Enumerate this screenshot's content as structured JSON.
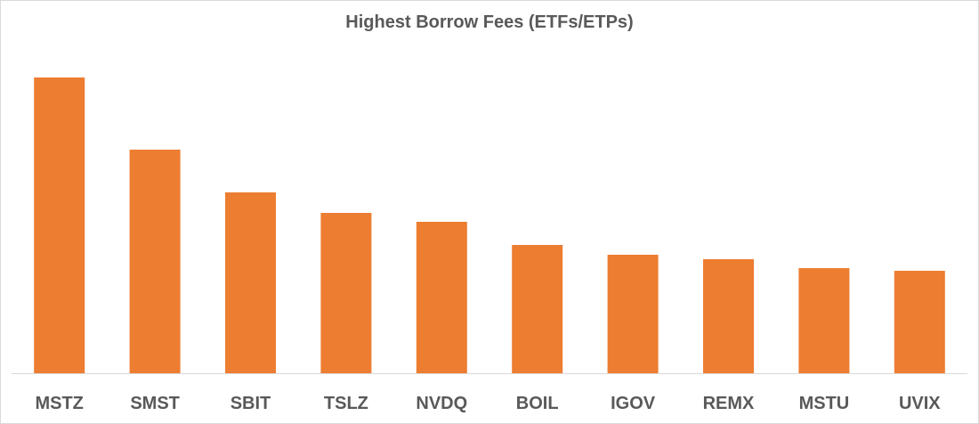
{
  "chart_data": {
    "type": "bar",
    "title": "Highest Borrow Fees (ETFs/ETPs)",
    "xlabel": "",
    "ylabel": "",
    "categories": [
      "MSTZ",
      "SMST",
      "SBIT",
      "TSLZ",
      "NVDQ",
      "BOIL",
      "IGOV",
      "REMX",
      "MSTU",
      "UVIX"
    ],
    "series": [
      {
        "values": [
          332,
          251,
          203,
          180,
          170,
          144,
          133,
          128,
          118,
          115
        ]
      }
    ],
    "ylim": [
      0,
      340
    ],
    "grid": false,
    "legend": "none",
    "bar_color": "#ED7D31"
  }
}
